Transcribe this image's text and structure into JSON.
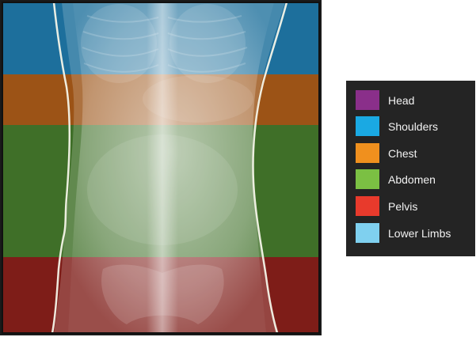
{
  "image": {
    "subject": "body-region-segmentation-overlay",
    "bands": [
      {
        "region": "shoulders",
        "color": "#1f7fb3"
      },
      {
        "region": "chest",
        "color": "#c46d1c"
      },
      {
        "region": "abdomen",
        "color": "#5a9a35"
      },
      {
        "region": "pelvis",
        "color": "#b3281f"
      }
    ]
  },
  "legend": {
    "items": [
      {
        "label": "Head",
        "color": "#8a2f8a"
      },
      {
        "label": "Shoulders",
        "color": "#1aa9e3"
      },
      {
        "label": "Chest",
        "color": "#f0901e"
      },
      {
        "label": "Abdomen",
        "color": "#7bc043"
      },
      {
        "label": "Pelvis",
        "color": "#e83a2c"
      },
      {
        "label": "Lower Limbs",
        "color": "#7fd0ef"
      }
    ]
  }
}
